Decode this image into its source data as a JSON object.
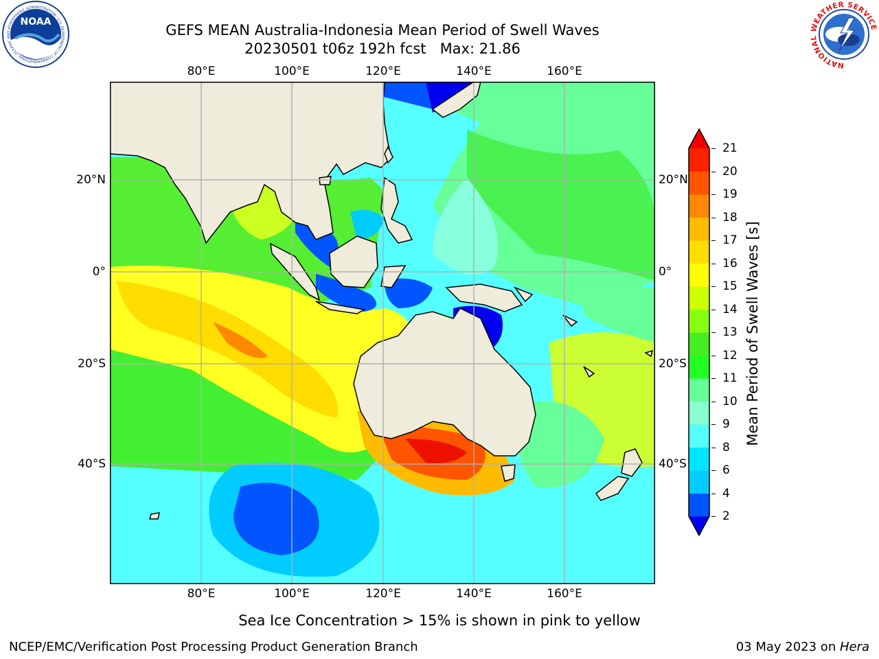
{
  "header": {
    "title_line1": "GEFS MEAN Australia-Indonesia Mean Period of Swell Waves",
    "title_line2": "20230501 t06z 192h fcst   Max: 21.86"
  },
  "logos": {
    "noaa_text": "NOAA",
    "noaa_ring": "NATIONAL OCEANIC AND ATMOSPHERIC ADMINISTRATION · U.S. DEPARTMENT OF COMMERCE",
    "nws_ring": "NATIONAL WEATHER SERVICE"
  },
  "map": {
    "lon_ticks": [
      "80°E",
      "100°E",
      "120°E",
      "140°E",
      "160°E"
    ],
    "lat_ticks_left": [
      "20°N",
      "0°",
      "20°S",
      "40°S"
    ],
    "lat_ticks_right": [
      "20°N",
      "0°",
      "20°S",
      "40°S"
    ],
    "colors": {
      "land": "#efecdc",
      "grid": "#b0b0b0",
      "coast": "#000000"
    }
  },
  "colorbar": {
    "label": "Mean Period of Swell Waves [s]",
    "ticks": [
      "21",
      "20",
      "19",
      "18",
      "17",
      "16",
      "15",
      "14",
      "13",
      "12",
      "11",
      "10",
      "9",
      "8",
      "6",
      "4",
      "2"
    ],
    "colors": [
      "#0000ee",
      "#0055ff",
      "#00ccff",
      "#00e5ff",
      "#55ffff",
      "#88ffcc",
      "#66ff99",
      "#22ff22",
      "#44ee22",
      "#88ff11",
      "#ccff00",
      "#ffff00",
      "#ffdd00",
      "#ffbb00",
      "#ff8800",
      "#ff5500",
      "#ff2200",
      "#ee0000"
    ]
  },
  "footer": {
    "sea_ice_note": "Sea Ice Concentration > 15% is shown in pink to yellow",
    "credit": "NCEP/EMC/Verification Post Processing Product Generation Branch",
    "date_prefix": "03 May 2023 on ",
    "date_host": "Hera"
  }
}
